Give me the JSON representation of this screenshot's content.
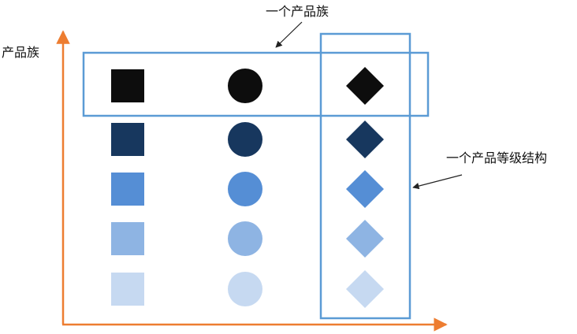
{
  "labels": {
    "y_axis": "产品族",
    "family_callout": "一个产品族",
    "grade_callout": "一个产品等级结构"
  },
  "colors": {
    "axis": "#ED7D31",
    "frame": "#5B9BD5",
    "callout_arrow": "#222222",
    "shades": [
      "#0d0d0d",
      "#17375e",
      "#558ed5",
      "#8eb4e3",
      "#c6d9f1"
    ]
  },
  "shapes": [
    "square",
    "circle",
    "diamond"
  ],
  "grid": {
    "columns": 3,
    "rows": 5
  }
}
